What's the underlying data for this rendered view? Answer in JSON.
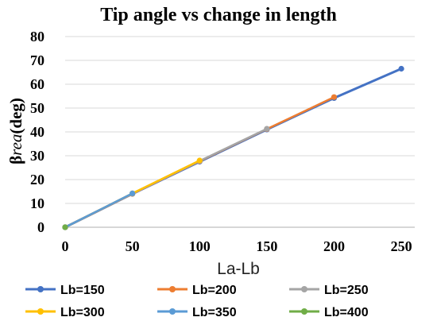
{
  "chart_data": {
    "type": "line",
    "title": "Tip angle vs change in length",
    "xlabel": "La-Lb",
    "ylabel": "βrea(deg)",
    "ylabel_prefix": "β",
    "ylabel_italic": "rea",
    "ylabel_suffix": "(deg)",
    "xlim": [
      0,
      250
    ],
    "ylim": [
      0,
      80
    ],
    "xticks": [
      0,
      50,
      100,
      150,
      200,
      250
    ],
    "yticks": [
      0,
      10,
      20,
      30,
      40,
      50,
      60,
      70,
      80
    ],
    "grid": true,
    "legend_position": "bottom",
    "series": [
      {
        "name": "Lb=150",
        "color": "#4472C4",
        "x": [
          0,
          50,
          100,
          150,
          200,
          250
        ],
        "y": [
          0,
          14,
          27.5,
          41,
          54.2,
          66.5
        ]
      },
      {
        "name": "Lb=200",
        "color": "#ED7D31",
        "x": [
          0,
          50,
          100,
          150,
          200
        ],
        "y": [
          0,
          14,
          27.7,
          41.2,
          54.6
        ]
      },
      {
        "name": "Lb=250",
        "color": "#A5A5A5",
        "x": [
          0,
          50,
          100,
          150
        ],
        "y": [
          0,
          14.1,
          27.8,
          41.3
        ]
      },
      {
        "name": "Lb=300",
        "color": "#FFC000",
        "x": [
          0,
          50,
          100
        ],
        "y": [
          0,
          14.2,
          28
        ]
      },
      {
        "name": "Lb=350",
        "color": "#5B9BD5",
        "x": [
          0,
          50
        ],
        "y": [
          0,
          14.2
        ]
      },
      {
        "name": "Lb=400",
        "color": "#70AD47",
        "x": [
          0
        ],
        "y": [
          0
        ]
      }
    ]
  }
}
